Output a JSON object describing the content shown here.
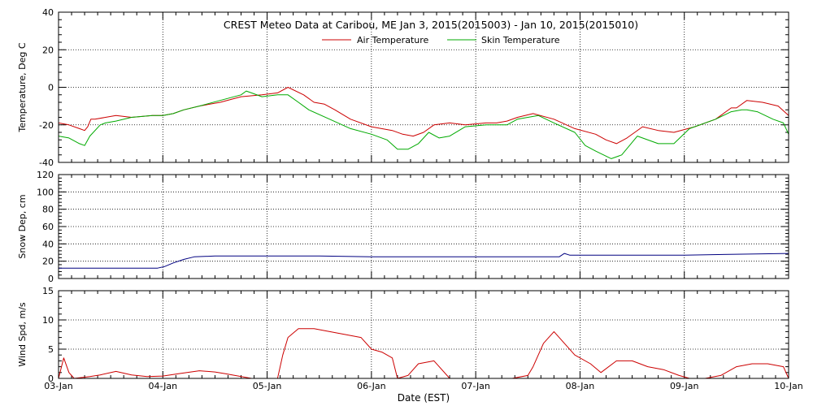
{
  "chart_data": {
    "type": "line",
    "title": "CREST Meteo Data at Caribou, ME   Jan  3, 2015(2015003) - Jan 10, 2015(2015010)",
    "xlabel": "Date (EST)",
    "x_tick_labels": [
      "03-Jan",
      "04-Jan",
      "05-Jan",
      "06-Jan",
      "07-Jan",
      "08-Jan",
      "09-Jan",
      "10-Jan"
    ],
    "x_unit": "days since 03-Jan 00:00 EST",
    "xlim": [
      0,
      7
    ],
    "grid": true,
    "colors": {
      "air": "#cc0000",
      "skin": "#00aa00",
      "snow": "#000080",
      "wind": "#cc0000"
    },
    "panels": [
      {
        "name": "temperature",
        "ylabel": "Temperature, Deg C",
        "ylim": [
          -40,
          40
        ],
        "yticks": [
          -40,
          -20,
          0,
          20,
          40
        ],
        "legend": "top-center",
        "series": [
          {
            "name": "Air Temperature",
            "x": [
              0,
              0.1,
              0.2,
              0.25,
              0.28,
              0.31,
              0.35,
              0.45,
              0.55,
              0.7,
              0.9,
              1.0,
              1.1,
              1.2,
              1.35,
              1.55,
              1.75,
              1.95,
              2.1,
              2.2,
              2.35,
              2.45,
              2.55,
              2.65,
              2.8,
              3.0,
              3.2,
              3.3,
              3.4,
              3.5,
              3.6,
              3.75,
              3.9,
              4.1,
              4.2,
              4.3,
              4.4,
              4.55,
              4.75,
              4.95,
              5.15,
              5.25,
              5.35,
              5.45,
              5.6,
              5.75,
              5.9,
              6.1,
              6.3,
              6.45,
              6.5,
              6.6,
              6.75,
              6.9,
              7.0
            ],
            "y": [
              -19,
              -20,
              -22,
              -23,
              -21,
              -17,
              -17,
              -16,
              -15,
              -16,
              -15,
              -15,
              -14,
              -12,
              -10,
              -8,
              -5,
              -4,
              -3,
              0,
              -4,
              -8,
              -9,
              -12,
              -17,
              -21,
              -23,
              -25,
              -26,
              -24,
              -20,
              -19,
              -20,
              -19,
              -19,
              -18,
              -16,
              -14,
              -17,
              -22,
              -25,
              -28,
              -30,
              -27,
              -21,
              -23,
              -24,
              -21,
              -17,
              -11,
              -11,
              -7,
              -8,
              -10,
              -15
            ]
          },
          {
            "name": "Skin Temperature",
            "x": [
              0,
              0.1,
              0.2,
              0.25,
              0.3,
              0.4,
              0.45,
              0.55,
              0.7,
              0.9,
              1.0,
              1.1,
              1.2,
              1.35,
              1.55,
              1.75,
              1.8,
              1.85,
              1.95,
              2.1,
              2.2,
              2.3,
              2.4,
              2.6,
              2.8,
              3.0,
              3.15,
              3.25,
              3.35,
              3.45,
              3.55,
              3.65,
              3.75,
              3.9,
              4.1,
              4.3,
              4.4,
              4.6,
              4.75,
              4.95,
              5.05,
              5.15,
              5.3,
              5.4,
              5.55,
              5.75,
              5.9,
              6.05,
              6.3,
              6.45,
              6.55,
              6.6,
              6.7,
              6.85,
              6.95,
              7.0
            ],
            "y": [
              -26,
              -27,
              -30,
              -31,
              -26,
              -20,
              -19,
              -18,
              -16,
              -15,
              -15,
              -14,
              -12,
              -10,
              -7,
              -4,
              -2,
              -3,
              -5,
              -4,
              -4,
              -8,
              -12,
              -17,
              -22,
              -25,
              -28,
              -33,
              -33,
              -30,
              -24,
              -27,
              -26,
              -21,
              -20,
              -20,
              -17,
              -15,
              -19,
              -24,
              -31,
              -34,
              -38,
              -36,
              -26,
              -30,
              -30,
              -22,
              -17,
              -13,
              -12,
              -12,
              -13,
              -17,
              -19,
              -25
            ]
          }
        ]
      },
      {
        "name": "snow-depth",
        "ylabel": "Snow Dep, cm",
        "ylim": [
          0,
          120
        ],
        "yticks": [
          0,
          20,
          40,
          60,
          80,
          100,
          120
        ],
        "series": [
          {
            "name": "",
            "x": [
              0,
              0.5,
              0.95,
              1.02,
              1.1,
              1.2,
              1.3,
              1.5,
              2.0,
              2.5,
              3.0,
              3.5,
              4.0,
              4.5,
              4.8,
              4.85,
              4.9,
              5.0,
              5.5,
              6.0,
              6.5,
              7.0
            ],
            "y": [
              12,
              12,
              12,
              14,
              18,
              22,
              25,
              26,
              26,
              26,
              25,
              25,
              25,
              25,
              25,
              29,
              27,
              27,
              27,
              27,
              28,
              29
            ]
          }
        ]
      },
      {
        "name": "wind-speed",
        "ylabel": "Wind Spd, m/s",
        "ylim": [
          0,
          15
        ],
        "yticks": [
          0,
          5,
          10,
          15
        ],
        "series": [
          {
            "name": "",
            "x": [
              0,
              0.05,
              0.1,
              0.15,
              0.3,
              0.4,
              0.55,
              0.7,
              0.85,
              1.0,
              1.15,
              1.35,
              1.5,
              1.6,
              1.85,
              2.0,
              2.1,
              2.15,
              2.2,
              2.3,
              2.45,
              2.6,
              2.75,
              2.9,
              3.0,
              3.1,
              3.2,
              3.25,
              3.35,
              3.45,
              3.6,
              3.65,
              3.75,
              3.9,
              4.1,
              4.35,
              4.5,
              4.55,
              4.65,
              4.75,
              4.85,
              4.95,
              5.1,
              5.2,
              5.35,
              5.5,
              5.65,
              5.8,
              5.95,
              6.05,
              6.2,
              6.35,
              6.5,
              6.65,
              6.8,
              6.95,
              7.0
            ],
            "y": [
              0,
              3.5,
              1,
              0,
              0.3,
              0.6,
              1.2,
              0.6,
              0.3,
              0.4,
              0.8,
              1.3,
              1.1,
              0.8,
              0,
              0,
              0,
              4,
              7,
              8.5,
              8.5,
              8,
              7.5,
              7,
              5,
              4.5,
              3.5,
              0,
              0.5,
              2.5,
              3,
              2,
              0,
              0,
              0,
              0,
              0.5,
              2,
              6,
              8,
              6,
              4,
              2.5,
              1,
              3,
              3,
              2,
              1.5,
              0.5,
              0,
              0,
              0.5,
              2,
              2.5,
              2.5,
              2,
              0
            ]
          }
        ]
      }
    ]
  }
}
